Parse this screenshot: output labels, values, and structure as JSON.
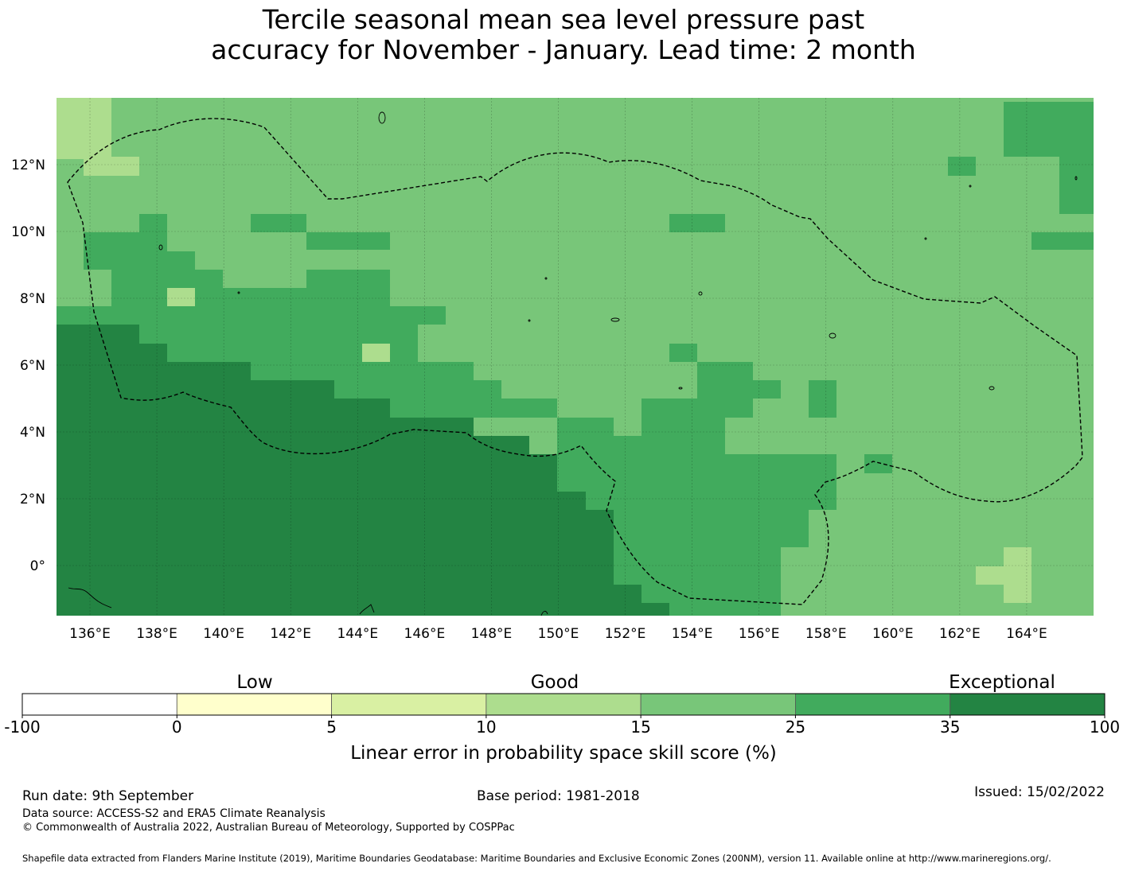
{
  "title": {
    "line1": "Tercile seasonal mean sea level pressure past",
    "line2": "accuracy for November - January. Lead time: 2 month"
  },
  "map": {
    "lon_range": [
      135,
      166
    ],
    "lat_range": [
      -1.5,
      14
    ],
    "lon_ticks": [
      "136°E",
      "138°E",
      "140°E",
      "142°E",
      "144°E",
      "146°E",
      "148°E",
      "150°E",
      "152°E",
      "154°E",
      "156°E",
      "158°E",
      "160°E",
      "162°E",
      "164°E"
    ],
    "lat_ticks": [
      "12°N",
      "10°N",
      "8°N",
      "6°N",
      "4°N",
      "2°N",
      "0°"
    ],
    "gridlines": true,
    "boundary_style": "dashed"
  },
  "colors": {
    "bins": [
      "#ffffff",
      "#ffffcc",
      "#d9f0a3",
      "#addd8e",
      "#78c679",
      "#41ab5d",
      "#238443"
    ],
    "boundary": "#000000"
  },
  "legend": {
    "category_labels": [
      "Low",
      "Good",
      "Exceptional"
    ],
    "bin_edges": [
      "-100",
      "0",
      "5",
      "10",
      "15",
      "25",
      "35",
      "100"
    ],
    "xlabel": "Linear error in probability space skill score (%)"
  },
  "footer": {
    "run_date": "Run date: 9th September",
    "base_period": "Base period: 1981-2018",
    "issued": "Issued: 15/02/2022",
    "data_source": "Data source: ACCESS-S2 and ERA5 Climate Reanalysis",
    "copyright": "© Commonwealth of Australia 2022, Australian Bureau of Meteorology, Supported by COSPPac",
    "shapefile": "Shapefile data extracted from Flanders Marine Institute (2019), Maritime Boundaries Geodatabase: Maritime Boundaries and Exclusive Economic Zones (200NM), version 11. Available online at http://www.marineregions.org/."
  }
}
